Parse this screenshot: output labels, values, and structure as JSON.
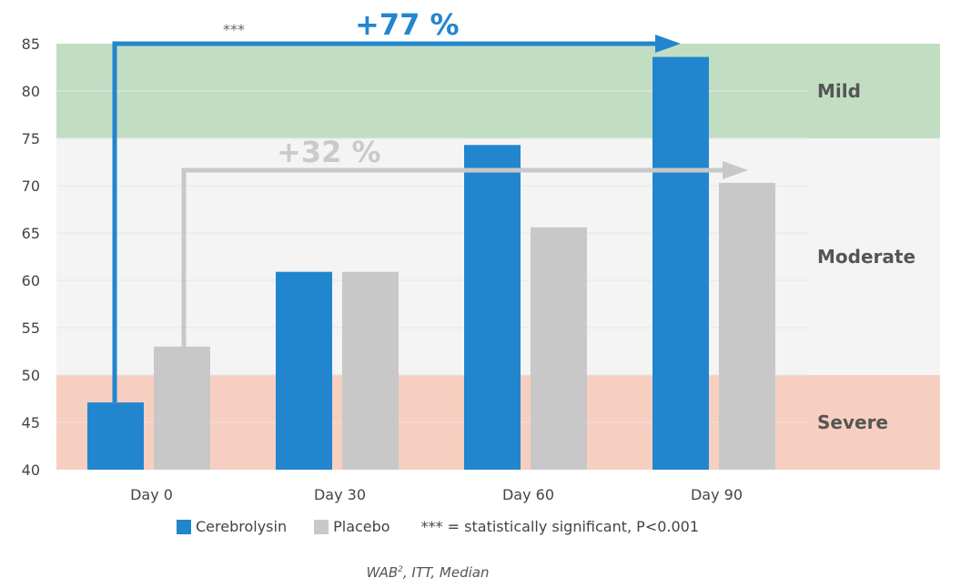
{
  "chart_data": {
    "type": "bar",
    "categories": [
      "Day 0",
      "Day 30",
      "Day 60",
      "Day 90"
    ],
    "series": [
      {
        "name": "Cerebrolysin",
        "values": [
          47.1,
          60.9,
          74.3,
          83.6
        ],
        "color": "#2286cf"
      },
      {
        "name": "Placebo",
        "values": [
          53.0,
          60.9,
          65.6,
          70.3
        ],
        "color": "#c8c8c8"
      }
    ],
    "ylim": [
      40,
      85
    ],
    "yticks": [
      40,
      45,
      50,
      55,
      60,
      65,
      70,
      75,
      80,
      85
    ],
    "grid": true,
    "legend_placement": "bottom",
    "zones": [
      {
        "label": "Severe",
        "from": 40,
        "to": 50,
        "color": "#f7cfc0"
      },
      {
        "label": "Moderate",
        "from": 50,
        "to": 75,
        "color": "#f4f4f4"
      },
      {
        "label": "Mild",
        "from": 75,
        "to": 85,
        "color": "#c1dec3"
      }
    ],
    "annotations": {
      "cerebrolysin_change": "+77 %",
      "placebo_change": "+32 %",
      "significance": "***"
    },
    "legend_note": "*** = statistically significant, P<0.001",
    "footnote_main": "WAB",
    "footnote_sup": "2",
    "footnote_rest": ", ITT, Median"
  }
}
